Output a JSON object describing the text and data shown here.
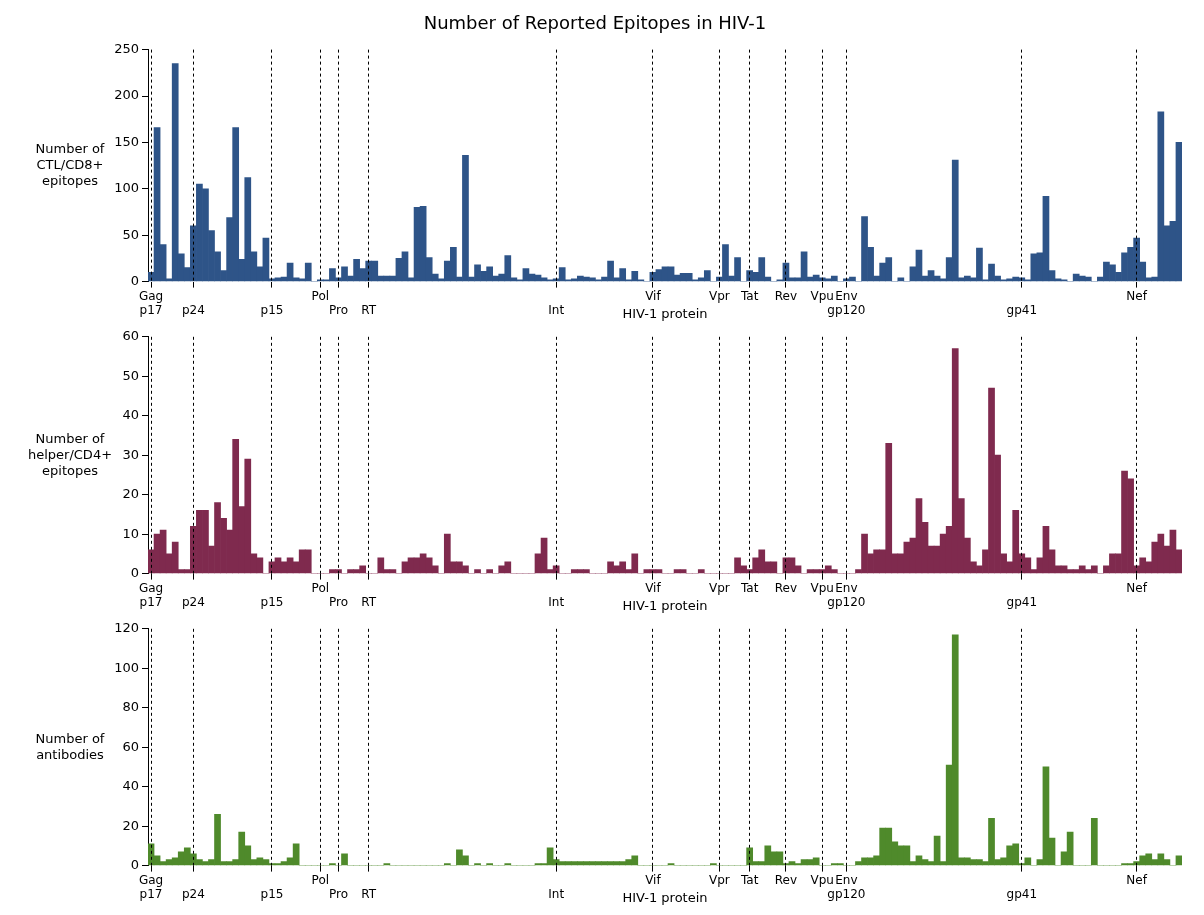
{
  "chart_data": [
    {
      "type": "bar",
      "title": "Number of Reported Epitopes in HIV-1",
      "xlabel": "HIV-1 protein",
      "ylabel": "Number of\nCTL/CD8+\nepitopes",
      "ylim": [
        0,
        250
      ],
      "yticks": [
        0,
        50,
        100,
        150,
        200,
        250
      ],
      "grid": "x",
      "categories": [
        "Gag\np17",
        null,
        null,
        null,
        null,
        null,
        null,
        "\np24",
        null,
        null,
        null,
        null,
        null,
        null,
        null,
        null,
        null,
        null,
        null,
        null,
        "\np15",
        null,
        null,
        null,
        null,
        null,
        null,
        null,
        "Pol",
        null,
        null,
        "\nPro",
        null,
        null,
        null,
        null,
        "\nRT",
        null,
        null,
        null,
        null,
        null,
        null,
        null,
        null,
        null,
        null,
        null,
        null,
        null,
        null,
        null,
        null,
        null,
        null,
        null,
        null,
        null,
        null,
        null,
        null,
        null,
        null,
        null,
        null,
        null,
        null,
        "\nInt",
        null,
        null,
        null,
        null,
        null,
        null,
        null,
        null,
        null,
        null,
        null,
        null,
        null,
        null,
        null,
        "Vif",
        null,
        null,
        null,
        null,
        null,
        null,
        null,
        null,
        null,
        null,
        "Vpr",
        null,
        null,
        null,
        null,
        "Tat",
        null,
        null,
        null,
        null,
        null,
        "Rev",
        null,
        null,
        null,
        null,
        null,
        "Vpu",
        null,
        null,
        null,
        "Env\ngp120",
        null,
        null,
        null,
        null,
        null,
        null,
        null,
        null,
        null,
        null,
        null,
        null,
        null,
        null,
        null,
        null,
        null,
        null,
        null,
        null,
        null,
        null,
        null,
        null,
        null,
        null,
        null,
        null,
        "\ngp41",
        null,
        null,
        null,
        null,
        null,
        null,
        null,
        null,
        null,
        null,
        null,
        null,
        null,
        null,
        null,
        null,
        null,
        null,
        "Nef",
        null,
        null,
        null,
        null,
        null,
        null,
        null
      ],
      "series": [
        {
          "color": "#2e5488",
          "values": [
            10,
            166,
            40,
            3,
            235,
            30,
            15,
            60,
            105,
            100,
            55,
            32,
            12,
            69,
            166,
            24,
            112,
            32,
            16,
            47,
            3,
            4,
            5,
            20,
            4,
            3,
            20,
            0,
            2,
            2,
            14,
            4,
            16,
            6,
            24,
            14,
            22,
            22,
            6,
            6,
            6,
            25,
            32,
            4,
            80,
            81,
            26,
            8,
            3,
            22,
            37,
            5,
            136,
            5,
            18,
            11,
            16,
            6,
            8,
            28,
            4,
            2,
            14,
            8,
            7,
            4,
            2,
            3,
            15,
            2,
            3,
            6,
            5,
            4,
            2,
            5,
            22,
            4,
            14,
            2,
            11,
            2,
            0,
            10,
            13,
            16,
            16,
            7,
            9,
            9,
            2,
            4,
            12,
            0,
            5,
            40,
            6,
            26,
            0,
            12,
            10,
            26,
            5,
            0,
            2,
            20,
            4,
            4,
            32,
            5,
            7,
            4,
            3,
            6,
            0,
            3,
            5,
            0,
            70,
            37,
            6,
            20,
            26,
            0,
            4,
            0,
            16,
            34,
            6,
            12,
            6,
            3,
            26,
            131,
            4,
            6,
            4,
            36,
            2,
            19,
            6,
            2,
            3,
            5,
            4,
            2,
            30,
            31,
            92,
            12,
            3,
            2,
            0,
            8,
            6,
            5,
            0,
            5,
            21,
            18,
            10,
            31,
            37,
            47,
            21,
            4,
            5,
            183,
            60,
            65,
            150
          ]
        }
      ]
    },
    {
      "type": "bar",
      "xlabel": "HIV-1 protein",
      "ylabel": "Number of\nhelper/CD4+\nepitopes",
      "ylim": [
        0,
        60
      ],
      "yticks": [
        0,
        10,
        20,
        30,
        40,
        50,
        60
      ],
      "grid": "x",
      "categories": [
        "Gag\np17",
        null,
        null,
        null,
        null,
        null,
        null,
        "\np24",
        null,
        null,
        null,
        null,
        null,
        null,
        null,
        null,
        null,
        null,
        null,
        null,
        "\np15",
        null,
        null,
        null,
        null,
        null,
        null,
        null,
        "Pol",
        null,
        null,
        "\nPro",
        null,
        null,
        null,
        null,
        "\nRT",
        null,
        null,
        null,
        null,
        null,
        null,
        null,
        null,
        null,
        null,
        null,
        null,
        null,
        null,
        null,
        null,
        null,
        null,
        null,
        null,
        null,
        null,
        null,
        null,
        null,
        null,
        null,
        null,
        null,
        null,
        "\nInt",
        null,
        null,
        null,
        null,
        null,
        null,
        null,
        null,
        null,
        null,
        null,
        null,
        null,
        null,
        null,
        "Vif",
        null,
        null,
        null,
        null,
        null,
        null,
        null,
        null,
        null,
        null,
        "Vpr",
        null,
        null,
        null,
        null,
        "Tat",
        null,
        null,
        null,
        null,
        null,
        "Rev",
        null,
        null,
        null,
        null,
        null,
        "Vpu",
        null,
        null,
        null,
        "Env\ngp120",
        null,
        null,
        null,
        null,
        null,
        null,
        null,
        null,
        null,
        null,
        null,
        null,
        null,
        null,
        null,
        null,
        null,
        null,
        null,
        null,
        null,
        null,
        null,
        null,
        null,
        null,
        null,
        null,
        "\ngp41",
        null,
        null,
        null,
        null,
        null,
        null,
        null,
        null,
        null,
        null,
        null,
        null,
        null,
        null,
        null,
        null,
        null,
        null,
        "Nef",
        null,
        null,
        null,
        null,
        null,
        null,
        null
      ],
      "series": [
        {
          "color": "#7f2a4e",
          "values": [
            6,
            10,
            11,
            5,
            8,
            1,
            1,
            12,
            16,
            16,
            7,
            18,
            14,
            11,
            34,
            17,
            29,
            5,
            4,
            0,
            3,
            4,
            3,
            4,
            3,
            6,
            6,
            0,
            0,
            0,
            1,
            1,
            0,
            1,
            1,
            2,
            0,
            0,
            4,
            1,
            1,
            0,
            3,
            4,
            4,
            5,
            4,
            2,
            0,
            10,
            3,
            3,
            2,
            0,
            1,
            0,
            1,
            0,
            2,
            3,
            0,
            0,
            0,
            0,
            5,
            9,
            1,
            2,
            0,
            0,
            1,
            1,
            1,
            0,
            0,
            0,
            3,
            2,
            3,
            1,
            5,
            0,
            1,
            1,
            1,
            0,
            0,
            1,
            1,
            0,
            0,
            1,
            0,
            0,
            0,
            0,
            0,
            4,
            2,
            1,
            4,
            6,
            3,
            3,
            0,
            4,
            4,
            2,
            0,
            1,
            1,
            1,
            2,
            1,
            0,
            0,
            0,
            1,
            10,
            5,
            6,
            6,
            33,
            5,
            5,
            8,
            9,
            19,
            13,
            7,
            7,
            10,
            12,
            57,
            19,
            9,
            3,
            2,
            6,
            47,
            30,
            5,
            3,
            16,
            5,
            4,
            1,
            4,
            12,
            6,
            2,
            2,
            1,
            1,
            2,
            1,
            2,
            0,
            2,
            5,
            5,
            26,
            24,
            2,
            4,
            3,
            8,
            10,
            7,
            11,
            6
          ]
        }
      ]
    },
    {
      "type": "bar",
      "xlabel": "HIV-1 protein",
      "ylabel": "Number of\nantibodies",
      "ylim": [
        0,
        120
      ],
      "yticks": [
        0,
        20,
        40,
        60,
        80,
        100,
        120
      ],
      "grid": "x",
      "categories": [
        "Gag\np17",
        null,
        null,
        null,
        null,
        null,
        null,
        "\np24",
        null,
        null,
        null,
        null,
        null,
        null,
        null,
        null,
        null,
        null,
        null,
        null,
        "\np15",
        null,
        null,
        null,
        null,
        null,
        null,
        null,
        "Pol",
        null,
        null,
        "\nPro",
        null,
        null,
        null,
        null,
        "\nRT",
        null,
        null,
        null,
        null,
        null,
        null,
        null,
        null,
        null,
        null,
        null,
        null,
        null,
        null,
        null,
        null,
        null,
        null,
        null,
        null,
        null,
        null,
        null,
        null,
        null,
        null,
        null,
        null,
        null,
        null,
        "\nInt",
        null,
        null,
        null,
        null,
        null,
        null,
        null,
        null,
        null,
        null,
        null,
        null,
        null,
        null,
        null,
        "Vif",
        null,
        null,
        null,
        null,
        null,
        null,
        null,
        null,
        null,
        null,
        "Vpr",
        null,
        null,
        null,
        null,
        "Tat",
        null,
        null,
        null,
        null,
        null,
        "Rev",
        null,
        null,
        null,
        null,
        null,
        "Vpu",
        null,
        null,
        null,
        "Env\ngp120",
        null,
        null,
        null,
        null,
        null,
        null,
        null,
        null,
        null,
        null,
        null,
        null,
        null,
        null,
        null,
        null,
        null,
        null,
        null,
        null,
        null,
        null,
        null,
        null,
        null,
        null,
        null,
        null,
        "\ngp41",
        null,
        null,
        null,
        null,
        null,
        null,
        null,
        null,
        null,
        null,
        null,
        null,
        null,
        null,
        null,
        null,
        null,
        null,
        "Nef",
        null,
        null,
        null,
        null,
        null,
        null,
        null
      ],
      "series": [
        {
          "color": "#4f8a2b",
          "values": [
            11,
            5,
            2,
            3,
            4,
            7,
            9,
            6,
            3,
            2,
            3,
            26,
            2,
            2,
            3,
            17,
            10,
            3,
            4,
            3,
            1,
            1,
            2,
            4,
            11,
            0,
            0,
            0,
            0,
            0,
            1,
            0,
            6,
            0,
            0,
            0,
            0,
            0,
            0,
            1,
            0,
            0,
            0,
            0,
            0,
            0,
            0,
            0,
            0,
            1,
            0,
            8,
            5,
            0,
            1,
            0,
            1,
            0,
            0,
            1,
            0,
            0,
            0,
            0,
            1,
            1,
            9,
            3,
            2,
            2,
            2,
            2,
            2,
            2,
            2,
            2,
            2,
            2,
            2,
            3,
            5,
            0,
            0,
            0,
            0,
            0,
            1,
            0,
            0,
            0,
            0,
            0,
            0,
            1,
            0,
            0,
            0,
            0,
            0,
            9,
            2,
            2,
            10,
            7,
            7,
            1,
            2,
            1,
            3,
            3,
            4,
            0,
            0,
            1,
            1,
            0,
            0,
            2,
            4,
            4,
            5,
            19,
            19,
            12,
            10,
            10,
            2,
            5,
            3,
            2,
            15,
            2,
            51,
            117,
            4,
            4,
            3,
            3,
            2,
            24,
            3,
            4,
            10,
            11,
            1,
            4,
            0,
            3,
            50,
            14,
            0,
            7,
            17,
            0,
            0,
            0,
            24,
            0,
            0,
            0,
            0,
            1,
            1,
            2,
            5,
            6,
            3,
            6,
            3,
            0,
            5
          ]
        }
      ]
    }
  ]
}
